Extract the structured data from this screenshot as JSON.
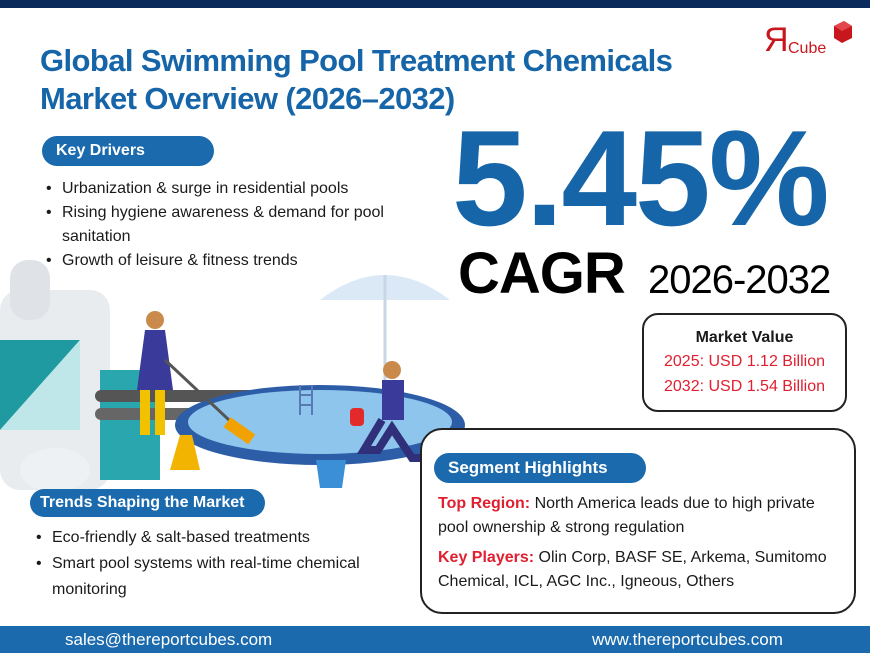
{
  "header": {
    "title_line1": "Global Swimming Pool Treatment Chemicals",
    "title_line2": "Market Overview (2026–2032)",
    "logo_text": "ЯCube"
  },
  "key_drivers": {
    "label": "Key Drivers",
    "items": [
      "Urbanization & surge in residential pools",
      "Rising hygiene awareness & demand for pool sanitation",
      "Growth of leisure & fitness trends"
    ]
  },
  "cagr": {
    "value": "5.45%",
    "label": "CAGR",
    "period": "2026-2032"
  },
  "market_value": {
    "heading": "Market Value",
    "line_2025": "2025: USD 1.12 Billion",
    "line_2032": "2032: USD 1.54 Billion"
  },
  "segment": {
    "label": "Segment Highlights",
    "region_label": "Top Region:",
    "region_text": " North America leads due to high private pool ownership & strong regulation",
    "players_label": "Key Players:",
    "players_text": " Olin Corp, BASF SE, Arkema, Sumitomo Chemical, ICL, AGC Inc., Igneous, Others"
  },
  "trends": {
    "label": "Trends Shaping the Market",
    "items": [
      "Eco-friendly & salt-based treatments",
      "Smart pool systems with real-time chemical monitoring"
    ]
  },
  "footer": {
    "email": "sales@thereportcubes.com",
    "website": "www.thereportcubes.com"
  },
  "colors": {
    "brand_blue": "#1565a8",
    "pill_blue": "#1b6aae",
    "navy": "#0b2a5c",
    "accent_red": "#e02030"
  }
}
